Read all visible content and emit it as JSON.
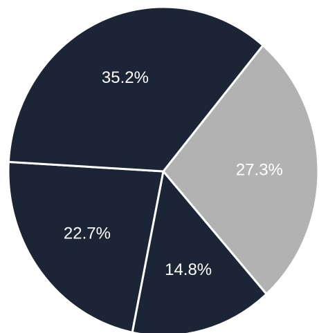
{
  "chart_data": {
    "type": "pie",
    "title": "",
    "slices": [
      {
        "label": "27.3%",
        "value": 27.3,
        "color": "#b2b2b2"
      },
      {
        "label": "14.8%",
        "value": 14.8,
        "color": "#1b2535"
      },
      {
        "label": "22.7%",
        "value": 22.7,
        "color": "#1b2535"
      },
      {
        "label": "35.2%",
        "value": 35.2,
        "color": "#1b2535"
      }
    ],
    "start_angle_deg": 40,
    "direction": "clockwise",
    "separator_color": "#ffffff"
  }
}
